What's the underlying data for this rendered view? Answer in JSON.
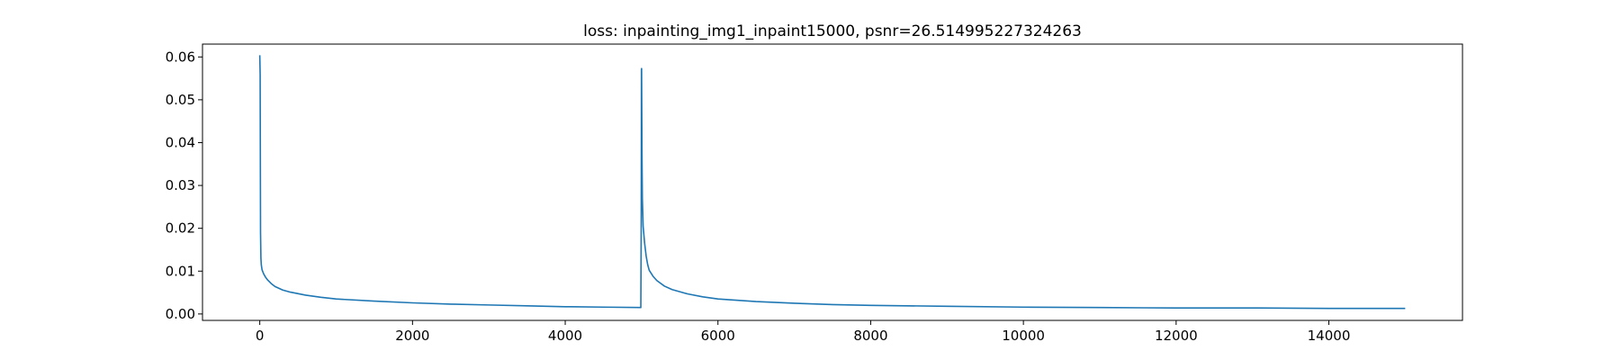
{
  "chart_data": {
    "type": "line",
    "title": "loss: inpainting_img1_inpaint15000, psnr=26.514995227324263",
    "xlabel": "",
    "ylabel": "",
    "xlim": [
      -750,
      15750
    ],
    "ylim": [
      -0.0015,
      0.063
    ],
    "grid": false,
    "legend": "none",
    "x_ticks": [
      0,
      2000,
      4000,
      6000,
      8000,
      10000,
      12000,
      14000
    ],
    "x_tick_labels": [
      "0",
      "2000",
      "4000",
      "6000",
      "8000",
      "10000",
      "12000",
      "14000"
    ],
    "y_ticks": [
      0.0,
      0.01,
      0.02,
      0.03,
      0.04,
      0.05,
      0.06
    ],
    "y_tick_labels": [
      "0.00",
      "0.01",
      "0.02",
      "0.03",
      "0.04",
      "0.05",
      "0.06"
    ],
    "series": [
      {
        "color": "#1f77b4",
        "x": [
          0,
          5,
          10,
          15,
          20,
          30,
          50,
          75,
          100,
          150,
          200,
          300,
          400,
          600,
          800,
          1000,
          1500,
          2000,
          2500,
          3000,
          3500,
          4000,
          4500,
          4990,
          4995,
          4998,
          5000,
          5005,
          5010,
          5020,
          5040,
          5060,
          5080,
          5100,
          5150,
          5200,
          5300,
          5400,
          5600,
          5800,
          6000,
          6500,
          7000,
          7500,
          8000,
          9000,
          10000,
          11000,
          12000,
          13000,
          14000,
          15000
        ],
        "y": [
          0.0604,
          0.056,
          0.019,
          0.013,
          0.0115,
          0.0103,
          0.0094,
          0.0086,
          0.008,
          0.0071,
          0.0064,
          0.0056,
          0.0051,
          0.0044,
          0.0039,
          0.0035,
          0.003,
          0.0026,
          0.0023,
          0.0021,
          0.0019,
          0.0017,
          0.0016,
          0.0015,
          0.02,
          0.057,
          0.0573,
          0.038,
          0.027,
          0.0205,
          0.0165,
          0.0135,
          0.0115,
          0.0102,
          0.0088,
          0.0078,
          0.0065,
          0.0057,
          0.0047,
          0.004,
          0.0035,
          0.0029,
          0.0025,
          0.0022,
          0.002,
          0.0018,
          0.0016,
          0.0015,
          0.0014,
          0.0014,
          0.0013,
          0.0013
        ]
      }
    ]
  }
}
